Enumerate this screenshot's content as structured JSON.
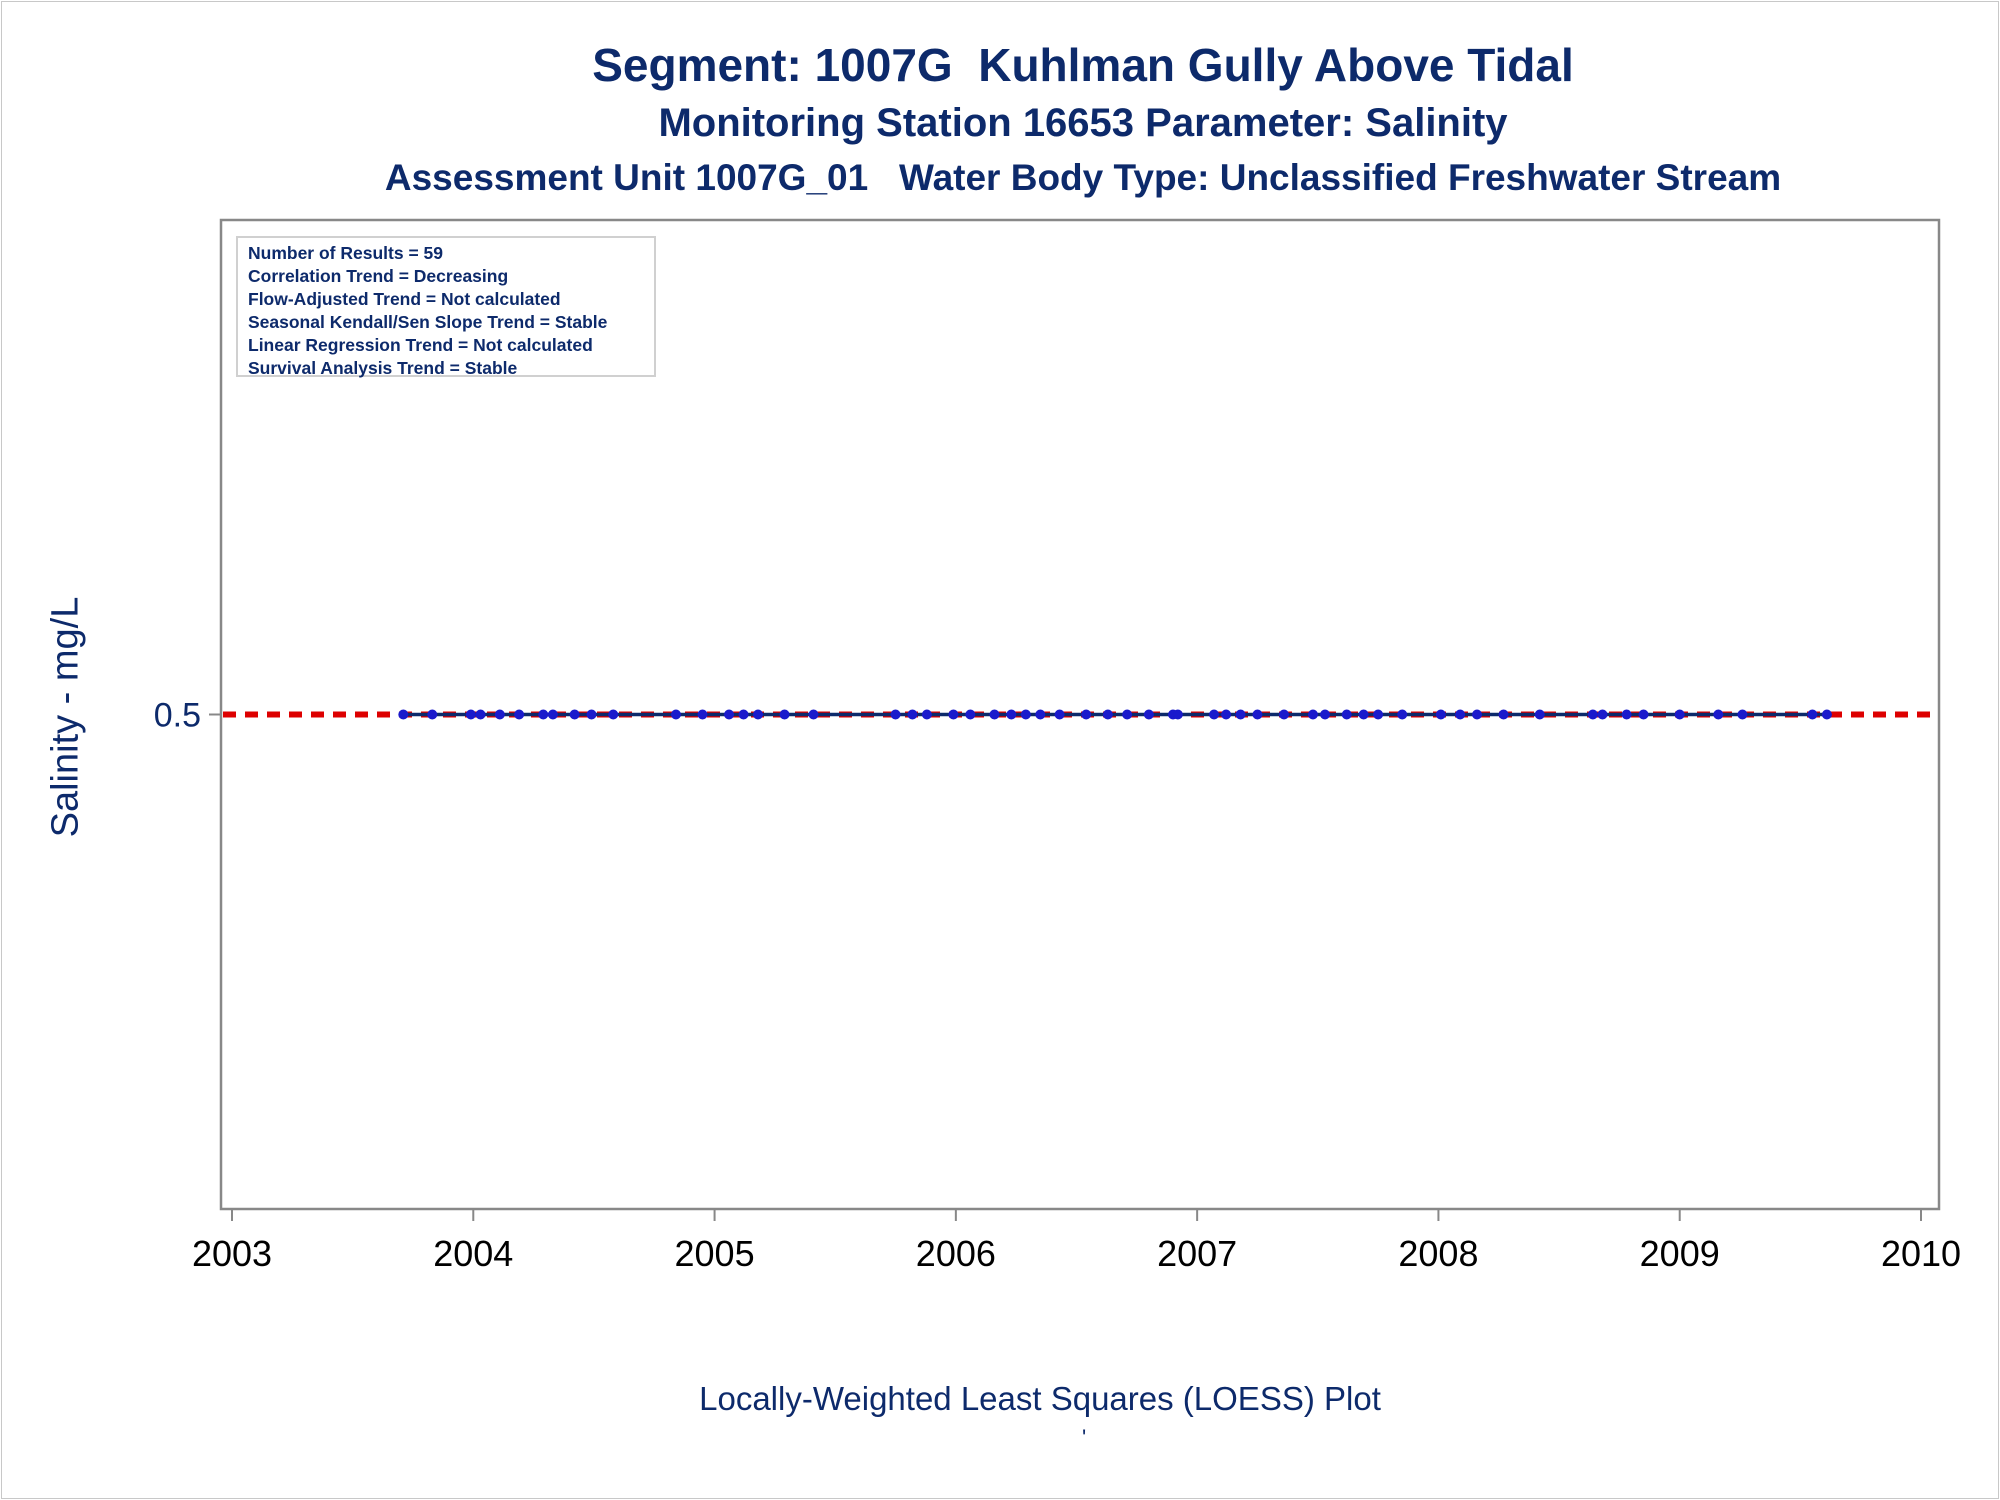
{
  "titles": {
    "line1": "Segment: 1007G  Kuhlman Gully Above Tidal",
    "line2": "Monitoring Station 16653 Parameter: Salinity",
    "line3": "Assessment Unit 1007G_01   Water Body Type: Unclassified Freshwater Stream"
  },
  "legend": [
    "Number of Results = 59",
    "Correlation Trend = Decreasing",
    "Flow-Adjusted Trend = Not calculated",
    "Seasonal Kendall/Sen Slope Trend = Stable",
    "Linear Regression Trend = Not calculated",
    "Survival Analysis Trend = Stable"
  ],
  "footnote": "'",
  "colors": {
    "text": "#0d2a6b",
    "points": "#1a1acc",
    "loess_line": "#0d2a6b",
    "reference_line": "#dd0000",
    "axis": "#888888"
  },
  "chart_data": {
    "type": "scatter",
    "title": "Segment: 1007G  Kuhlman Gully Above Tidal",
    "xlabel": "Locally-Weighted Least Squares (LOESS) Plot",
    "ylabel": "Salinity - mg/L",
    "x_ticks": [
      "2003",
      "2004",
      "2005",
      "2006",
      "2007",
      "2008",
      "2009",
      "2010"
    ],
    "y_ticks": [
      "0.5"
    ],
    "xlim": [
      2003,
      2010
    ],
    "ylim": [
      0.0,
      1.0
    ],
    "reference_line": {
      "y": 0.5,
      "style": "dashed",
      "color": "#dd0000"
    },
    "loess_line": {
      "y": 0.5,
      "color": "#0d2a6b"
    },
    "grid": false,
    "legend_position": "top-left",
    "x": [
      2003.71,
      2003.83,
      2003.99,
      2004.03,
      2004.11,
      2004.19,
      2004.29,
      2004.33,
      2004.42,
      2004.49,
      2004.58,
      2004.84,
      2004.95,
      2005.06,
      2005.12,
      2005.18,
      2005.29,
      2005.41,
      2005.75,
      2005.82,
      2005.88,
      2005.99,
      2006.06,
      2006.16,
      2006.23,
      2006.29,
      2006.35,
      2006.43,
      2006.54,
      2006.63,
      2006.71,
      2006.8,
      2006.9,
      2006.92,
      2007.07,
      2007.12,
      2007.18,
      2007.25,
      2007.36,
      2007.48,
      2007.53,
      2007.62,
      2007.69,
      2007.75,
      2007.85,
      2008.01,
      2008.09,
      2008.16,
      2008.27,
      2008.42,
      2008.64,
      2008.68,
      2008.78,
      2008.85,
      2009.0,
      2009.16,
      2009.26,
      2009.55,
      2009.61
    ],
    "y": [
      0.5,
      0.5,
      0.5,
      0.5,
      0.5,
      0.5,
      0.5,
      0.5,
      0.5,
      0.5,
      0.5,
      0.5,
      0.5,
      0.5,
      0.5,
      0.5,
      0.5,
      0.5,
      0.5,
      0.5,
      0.5,
      0.5,
      0.5,
      0.5,
      0.5,
      0.5,
      0.5,
      0.5,
      0.5,
      0.5,
      0.5,
      0.5,
      0.5,
      0.5,
      0.5,
      0.5,
      0.5,
      0.5,
      0.5,
      0.5,
      0.5,
      0.5,
      0.5,
      0.5,
      0.5,
      0.5,
      0.5,
      0.5,
      0.5,
      0.5,
      0.5,
      0.5,
      0.5,
      0.5,
      0.5,
      0.5,
      0.5,
      0.5,
      0.5
    ]
  }
}
